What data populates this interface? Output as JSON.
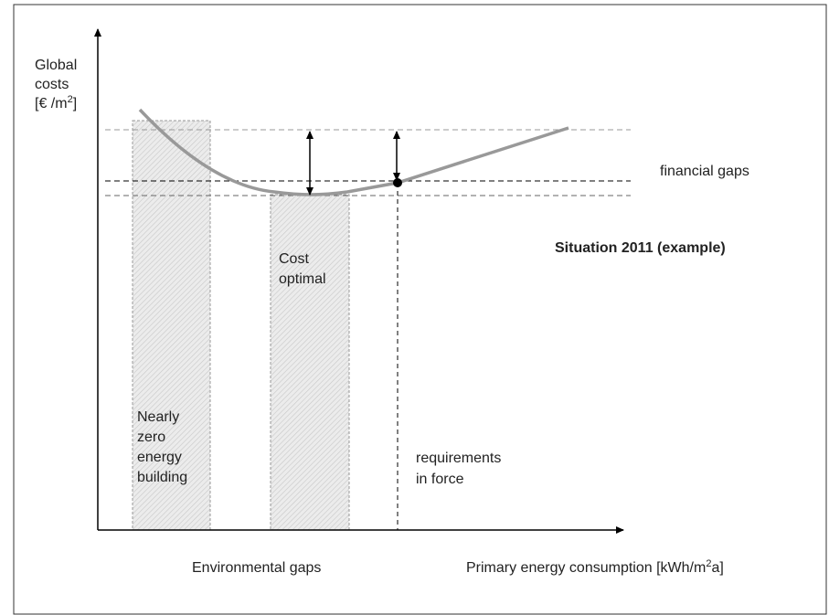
{
  "y_axis": {
    "lines": [
      "Global",
      "costs"
    ],
    "unit_start": "[€ /m",
    "unit_sup": "2",
    "unit_end": "]"
  },
  "x_axis": {
    "label_start": "Primary energy consumption [kWh/m",
    "label_sup": "2",
    "label_end": "a]"
  },
  "financial_gaps": "financial gaps",
  "situation": "Situation 2011 (example)",
  "cost_optimal": [
    "Cost",
    "optimal"
  ],
  "nzeb": [
    "Nearly",
    "zero",
    "energy",
    "building"
  ],
  "requirements": [
    "requirements",
    "in force"
  ],
  "environmental_gaps": "Environmental gaps"
}
